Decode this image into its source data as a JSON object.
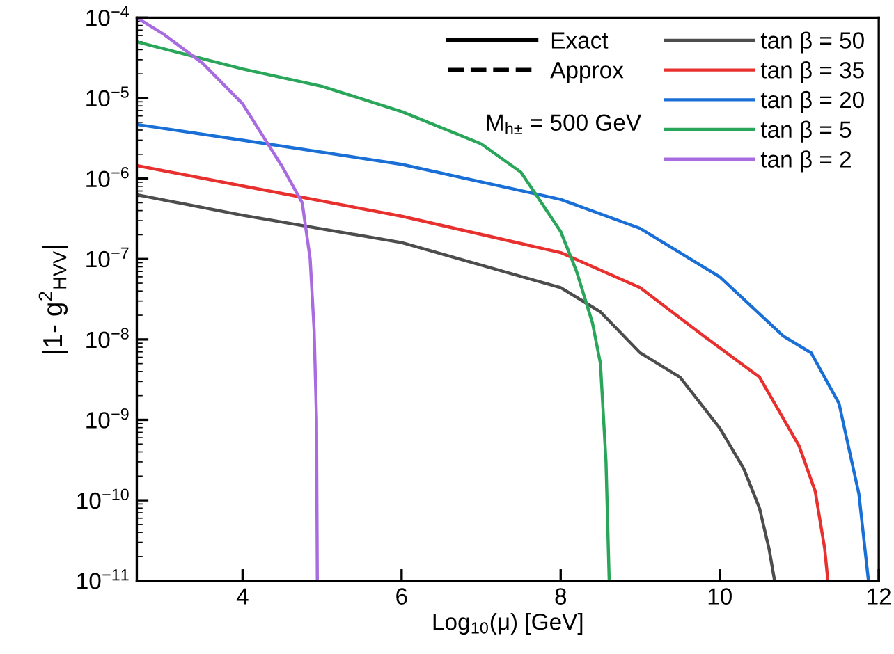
{
  "chart_data": {
    "type": "line",
    "xlabel": "Log$_{10}$(μ) [GeV]",
    "ylabel": "|1- g$^{2}$$_{HVV}$|",
    "log": "y",
    "xlim": [
      2.67,
      12
    ],
    "xticks": [
      4,
      6,
      8,
      10,
      12
    ],
    "ylim": [
      1e-11,
      0.0001
    ],
    "yticks": [
      {
        "value": 1e-11,
        "label": "10$^{−11}$"
      },
      {
        "value": 1e-10,
        "label": "10$^{−10}$"
      },
      {
        "value": 1e-09,
        "label": "10$^{−9}$"
      },
      {
        "value": 1e-08,
        "label": "10$^{−8}$"
      },
      {
        "value": 1e-07,
        "label": "10$^{−7}$"
      },
      {
        "value": 1e-06,
        "label": "10$^{−6}$"
      },
      {
        "value": 1e-05,
        "label": "10$^{−5}$"
      },
      {
        "value": 0.0001,
        "label": "10$^{−4}$"
      }
    ],
    "grid": false,
    "legend": "top right",
    "line_style": "solid",
    "annotations": [
      "M$_{h±}$ = 500 GeV"
    ],
    "series": [
      {
        "name": "Exact",
        "color": "#000000",
        "line_style": "solid"
      },
      {
        "name": "Approx",
        "color": "#000000",
        "line_style": "dashed"
      },
      {
        "name": "tan β = 50",
        "color": "#4d4d4d",
        "x": [
          2.67,
          4,
          6,
          8,
          8.5,
          9,
          9.5,
          10,
          10.3,
          10.5,
          10.62,
          10.69
        ],
        "values": [
          6.3e-07,
          3.5e-07,
          1.6e-07,
          4.4e-08,
          2.2e-08,
          6.8e-09,
          3.4e-09,
          7.9e-10,
          2.5e-10,
          8e-11,
          2.5e-11,
          1e-11
        ]
      },
      {
        "name": "tan β = 35",
        "color": "#e8302e",
        "x": [
          2.67,
          4,
          6,
          8,
          9,
          9.8,
          10.5,
          11,
          11.2,
          11.32,
          11.36
        ],
        "values": [
          1.45e-06,
          8.1e-07,
          3.4e-07,
          1.2e-07,
          4.4e-08,
          1.1e-08,
          3.4e-09,
          4.7e-10,
          1.3e-10,
          2.5e-11,
          1e-11
        ]
      },
      {
        "name": "tan β = 20",
        "color": "#1a6fd6",
        "x": [
          2.67,
          4,
          6,
          8,
          9,
          10,
          10.8,
          11.15,
          11.5,
          11.75,
          11.87
        ],
        "values": [
          4.7e-06,
          3e-06,
          1.5e-06,
          5.5e-07,
          2.4e-07,
          6e-08,
          1.1e-08,
          6.8e-09,
          1.6e-09,
          1.2e-10,
          1e-11
        ]
      },
      {
        "name": "tan β = 5",
        "color": "#2aa65a",
        "x": [
          2.67,
          4,
          5,
          6,
          7,
          7.5,
          8,
          8.2,
          8.4,
          8.5,
          8.57,
          8.61
        ],
        "values": [
          5e-05,
          2.3e-05,
          1.4e-05,
          6.8e-06,
          2.7e-06,
          1.2e-06,
          2.2e-07,
          7e-08,
          1.6e-08,
          5e-09,
          3e-10,
          1e-11
        ]
      },
      {
        "name": "tan β = 2",
        "color": "#a86ce0",
        "x": [
          2.67,
          3,
          3.5,
          4,
          4.5,
          4.75,
          4.85,
          4.9,
          4.93,
          4.94
        ],
        "values": [
          0.0001,
          6.3e-05,
          2.7e-05,
          8.5e-06,
          1.4e-06,
          5e-07,
          1e-07,
          1.3e-08,
          1e-09,
          1e-11
        ]
      }
    ]
  }
}
